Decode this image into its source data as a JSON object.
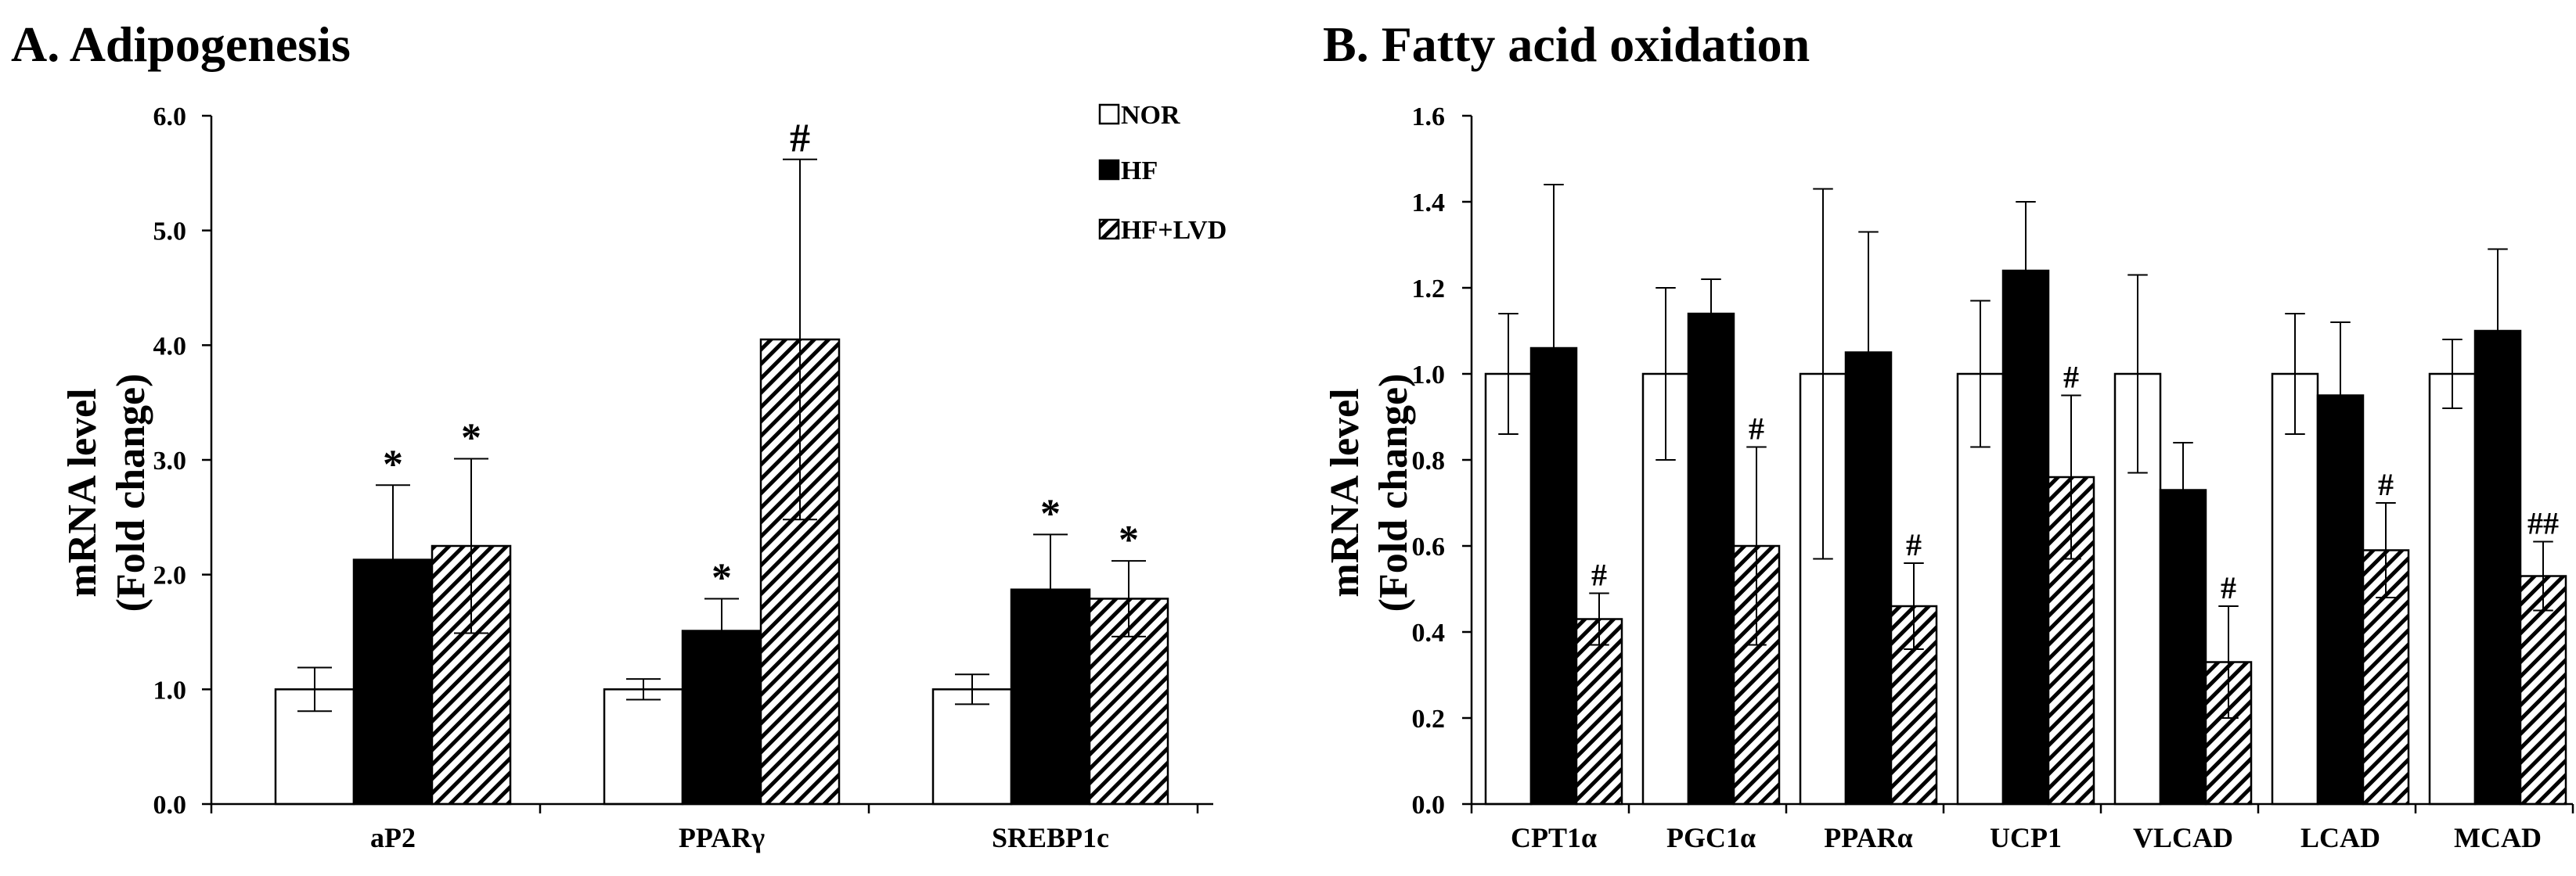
{
  "chart_data": [
    {
      "type": "bar",
      "title": "A. Adipogenesis",
      "ylabel": [
        "mRNA level",
        "(Fold change)"
      ],
      "ylim": [
        0,
        6
      ],
      "ytick_step": 1,
      "ytick_decimals": 1,
      "categories": [
        "aP2",
        "PPARγ",
        "SREBP1c"
      ],
      "legend": {
        "placement": "top-right"
      },
      "series": [
        {
          "name": "NOR",
          "fill": "white",
          "values": [
            1.0,
            1.0,
            1.0
          ],
          "errors": [
            0.19,
            0.09,
            0.13
          ],
          "annotations": [
            "",
            "",
            ""
          ]
        },
        {
          "name": "HF",
          "fill": "black",
          "values": [
            2.13,
            1.51,
            1.87
          ],
          "errors": [
            0.65,
            0.28,
            0.48
          ],
          "annotations": [
            "*",
            "*",
            "*"
          ]
        },
        {
          "name": "HF+LVD",
          "fill": "hatch",
          "values": [
            2.25,
            4.05,
            1.79
          ],
          "errors": [
            0.76,
            1.57,
            0.33
          ],
          "annotations": [
            "*",
            "#",
            "*"
          ]
        }
      ]
    },
    {
      "type": "bar",
      "title": "B. Fatty acid oxidation",
      "ylabel": [
        "mRNA level",
        "(Fold change)"
      ],
      "ylim": [
        0,
        1.6
      ],
      "ytick_step": 0.2,
      "ytick_decimals": 1,
      "categories": [
        "CPT1α",
        "PGC1α",
        "PPARα",
        "UCP1",
        "VLCAD",
        "LCAD",
        "MCAD"
      ],
      "series": [
        {
          "name": "NOR",
          "fill": "white",
          "values": [
            1.0,
            1.0,
            1.0,
            1.0,
            1.0,
            1.0,
            1.0
          ],
          "errors": [
            0.14,
            0.2,
            0.43,
            0.17,
            0.23,
            0.14,
            0.08
          ],
          "annotations": [
            "",
            "",
            "",
            "",
            "",
            "",
            ""
          ]
        },
        {
          "name": "HF",
          "fill": "black",
          "values": [
            1.06,
            1.14,
            1.05,
            1.24,
            0.73,
            0.95,
            1.1
          ],
          "errors": [
            0.38,
            0.08,
            0.28,
            0.16,
            0.11,
            0.17,
            0.19
          ],
          "annotations": [
            "",
            "",
            "",
            "",
            "",
            "",
            ""
          ]
        },
        {
          "name": "HF+LVD",
          "fill": "hatch",
          "values": [
            0.43,
            0.6,
            0.46,
            0.76,
            0.33,
            0.59,
            0.53
          ],
          "errors": [
            0.06,
            0.23,
            0.1,
            0.19,
            0.13,
            0.11,
            0.08
          ],
          "annotations": [
            "#",
            "#",
            "#",
            "#",
            "#",
            "#",
            "##"
          ]
        }
      ]
    }
  ]
}
